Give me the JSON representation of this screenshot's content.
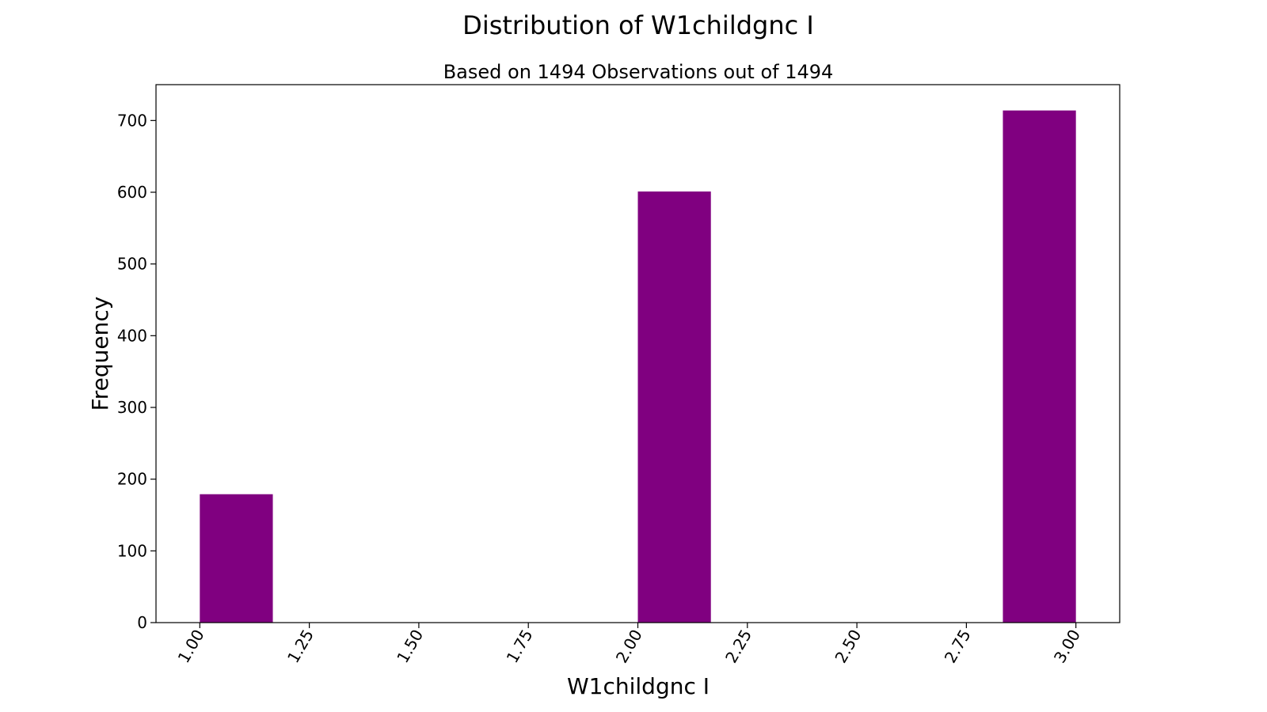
{
  "chart_data": {
    "type": "bar",
    "title": "Distribution of W1childgnc I",
    "subtitle": "Based on 1494 Observations out of 1494",
    "xlabel": "W1childgnc I",
    "ylabel": "Frequency",
    "xlim": [
      0.9,
      3.1
    ],
    "ylim": [
      0,
      750
    ],
    "xticks": [
      "1.00",
      "1.25",
      "1.50",
      "1.75",
      "2.00",
      "2.25",
      "2.50",
      "2.75",
      "3.00"
    ],
    "yticks": [
      "0",
      "100",
      "200",
      "300",
      "400",
      "500",
      "600",
      "700"
    ],
    "bins": [
      {
        "start": 1.0,
        "end": 1.1667,
        "value": 179
      },
      {
        "start": 2.0,
        "end": 2.1667,
        "value": 601
      },
      {
        "start": 2.8333,
        "end": 3.0,
        "value": 714
      }
    ],
    "bar_color": "#800080",
    "grid": false,
    "legend": "none"
  }
}
